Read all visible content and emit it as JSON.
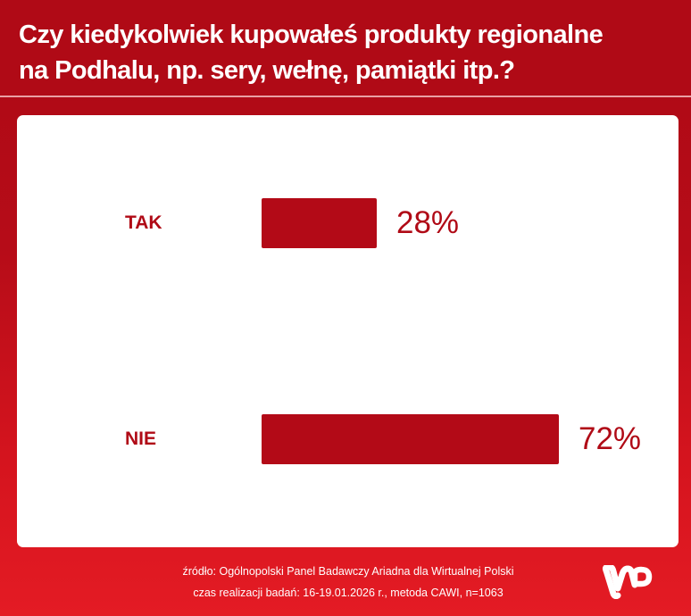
{
  "header": {
    "title_line1": "Czy kiedykolwiek kupowałeś produkty regionalne",
    "title_line2": "na Podhalu, np. sery, wełnę, pamiątki itp.?"
  },
  "chart_data": {
    "type": "bar",
    "orientation": "horizontal",
    "title": "Czy kiedykolwiek kupowałeś produkty regionalne na Podhalu, np. sery, wełnę, pamiątki itp.?",
    "categories": [
      "TAK",
      "NIE"
    ],
    "values": [
      28,
      72
    ],
    "value_labels": [
      "28%",
      "72%"
    ],
    "unit": "%",
    "xlabel": "",
    "ylabel": "",
    "xlim": [
      0,
      100
    ],
    "grid": false,
    "legend": "none",
    "bar_color": "#b30a17"
  },
  "rows": [
    {
      "label": "TAK",
      "value_label": "28%"
    },
    {
      "label": "NIE",
      "value_label": "72%"
    }
  ],
  "footer": {
    "source": "źródło: Ogólnopolski Panel Badawczy Ariadna dla Wirtualnej Polski",
    "method": "czas realizacji badań: 16-19.01.2026 r., metoda CAWI, n=1063"
  },
  "brand": {
    "logo_icon": "wp-logo-icon",
    "primary_color": "#b00a16",
    "accent_color": "#e41b24"
  }
}
